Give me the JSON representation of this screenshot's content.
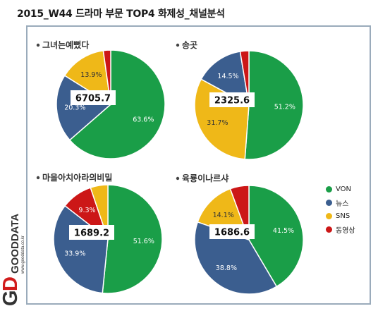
{
  "title": "2015_W44 드라마 부문 TOP4 화제성_채널분석",
  "colors": {
    "VON": "#1a9e48",
    "뉴스": "#3b5e8f",
    "SNS": "#efb818",
    "동영상": "#cc1717"
  },
  "chart_data": {
    "type": "pie",
    "legend_position": "right",
    "legend": [
      "VON",
      "뉴스",
      "SNS",
      "동영상"
    ],
    "charts": [
      {
        "title": "그녀는예뻤다",
        "total": "6705.7",
        "slices": [
          {
            "name": "VON",
            "value": 63.6
          },
          {
            "name": "뉴스",
            "value": 20.3
          },
          {
            "name": "SNS",
            "value": 13.9
          },
          {
            "name": "동영상",
            "value": 2.2
          }
        ],
        "labels": [
          "63.6%",
          "20.3%",
          "13.9%",
          ""
        ]
      },
      {
        "title": "송곳",
        "total": "2325.6",
        "slices": [
          {
            "name": "VON",
            "value": 51.2
          },
          {
            "name": "SNS",
            "value": 31.7
          },
          {
            "name": "뉴스",
            "value": 14.5
          },
          {
            "name": "동영상",
            "value": 2.6
          }
        ],
        "labels": [
          "51.2%",
          "31.7%",
          "14.5%",
          ""
        ]
      },
      {
        "title": "마을아치아라의비밀",
        "total": "1689.2",
        "slices": [
          {
            "name": "VON",
            "value": 51.6
          },
          {
            "name": "뉴스",
            "value": 33.9
          },
          {
            "name": "동영상",
            "value": 9.3
          },
          {
            "name": "SNS",
            "value": 5.2
          }
        ],
        "labels": [
          "51.6%",
          "33.9%",
          "9.3%",
          ""
        ]
      },
      {
        "title": "육룡이나르샤",
        "total": "1686.6",
        "slices": [
          {
            "name": "VON",
            "value": 41.5
          },
          {
            "name": "뉴스",
            "value": 38.8
          },
          {
            "name": "SNS",
            "value": 14.1
          },
          {
            "name": "동영상",
            "value": 5.6
          }
        ],
        "labels": [
          "41.5%",
          "38.8%",
          "14.1%",
          ""
        ]
      }
    ]
  },
  "logo": {
    "letters": "GD",
    "name": "GOODDATA",
    "url": "www.gooddata.co.kr"
  }
}
